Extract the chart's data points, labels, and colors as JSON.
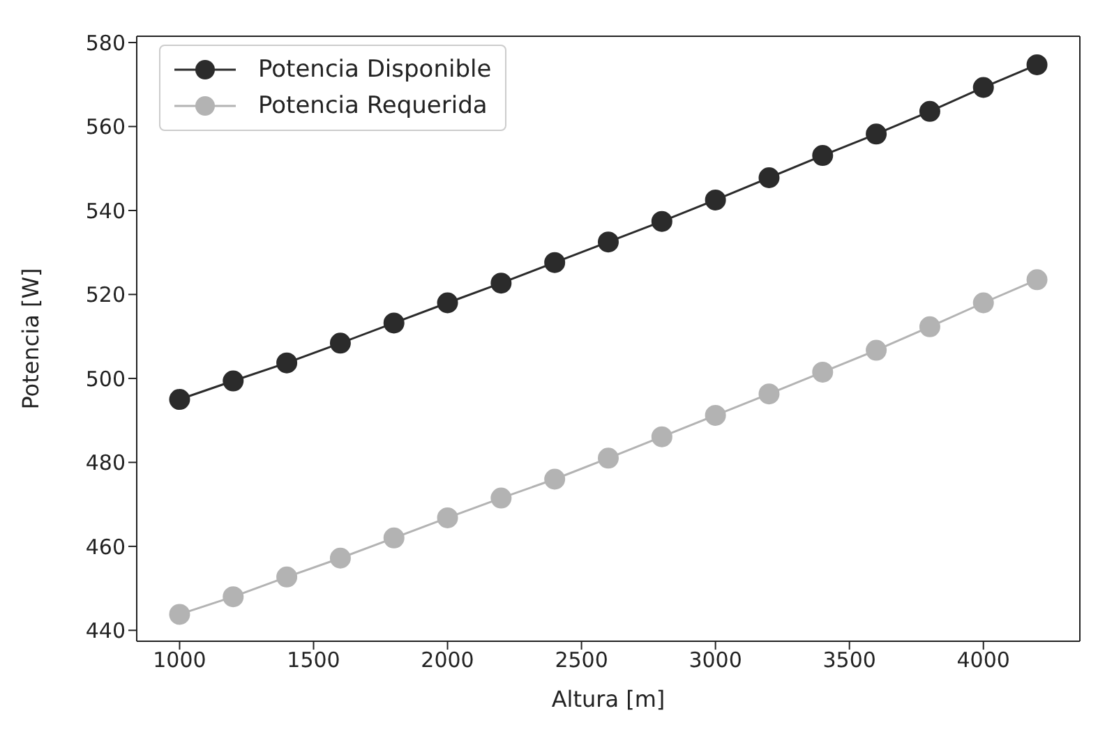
{
  "chart_data": {
    "type": "line",
    "xlabel": "Altura [m]",
    "ylabel": "Potencia [W]",
    "x": [
      1000,
      1200,
      1400,
      1600,
      1800,
      2000,
      2200,
      2400,
      2600,
      2800,
      3000,
      3200,
      3400,
      3600,
      3800,
      4000,
      4200
    ],
    "series": [
      {
        "name": "Potencia Disponible",
        "color": "#2b2b2b",
        "values": [
          495,
          499.4,
          503.7,
          508.4,
          513.2,
          518,
          522.7,
          527.6,
          532.5,
          537.4,
          542.5,
          547.8,
          553.1,
          558.2,
          563.6,
          569.3,
          574.7
        ]
      },
      {
        "name": "Potencia Requerida",
        "color": "#b3b3b3",
        "values": [
          443.8,
          448,
          452.7,
          457.2,
          462,
          466.8,
          471.5,
          476,
          481,
          486.1,
          491.2,
          496.3,
          501.5,
          506.7,
          512.3,
          518,
          523.5
        ]
      }
    ],
    "xlim": [
      840,
      4360
    ],
    "xticks": [
      1000,
      1500,
      2000,
      2500,
      3000,
      3500,
      4000
    ],
    "ylim": [
      437.4,
      581.5
    ],
    "yticks": [
      440,
      460,
      480,
      500,
      520,
      540,
      560,
      580
    ],
    "grid": false,
    "legend": "top left",
    "marker": "circle",
    "line_style": "solid"
  }
}
